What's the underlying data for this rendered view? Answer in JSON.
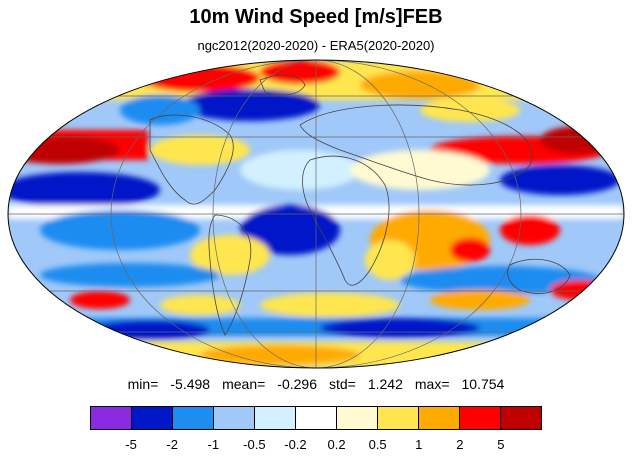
{
  "title": "10m Wind Speed [m/s]FEB",
  "subtitle": "ngc2012(2020-2020) - ERA5(2020-2020)",
  "stats": {
    "min_label": "min=",
    "min": "-5.498",
    "mean_label": "mean=",
    "mean": "-0.296",
    "std_label": "std=",
    "std": "1.242",
    "max_label": "max=",
    "max": "10.754"
  },
  "map": {
    "projection": "mollweide",
    "field": "10m wind speed difference",
    "features": [
      "continent-outlines",
      "graticule"
    ]
  },
  "colorbar": {
    "colors": [
      "#8a2be2",
      "#0018c8",
      "#1e8cf0",
      "#a0c8f8",
      "#d2f0ff",
      "#ffffff",
      "#fffad2",
      "#ffe650",
      "#ffaa00",
      "#ff0000",
      "#c00000"
    ],
    "labels": [
      "-5",
      "-2",
      "-1",
      "-0.5",
      "-0.2",
      "0.2",
      "0.5",
      "1",
      "2",
      "5"
    ]
  }
}
